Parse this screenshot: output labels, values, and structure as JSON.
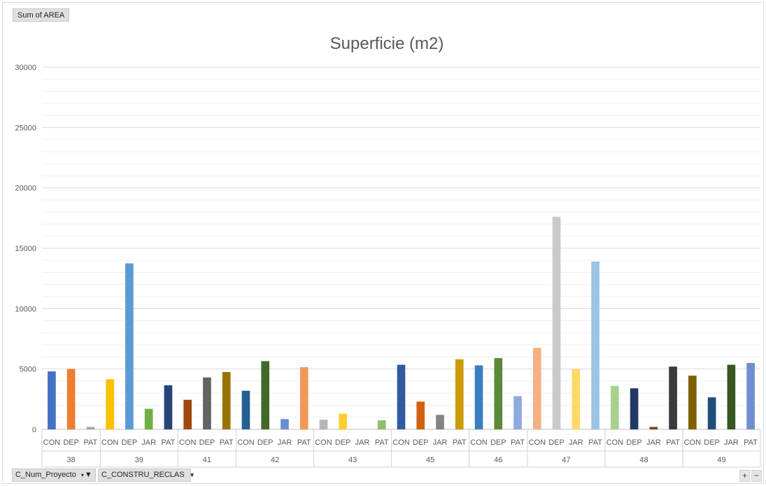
{
  "value_field": "Sum of AREA",
  "axis_fields": [
    {
      "label": "C_Num_Proyecto",
      "icon": "filter-icon"
    },
    {
      "label": "C_CONSTRU_RECLAS",
      "icon": "dropdown-arrow-icon"
    }
  ],
  "zoom": {
    "plus": "+",
    "minus": "−"
  },
  "chart_data": {
    "type": "bar",
    "title": "Superficie (m2)",
    "xlabel": "",
    "ylabel": "",
    "ylim": [
      0,
      30000
    ],
    "yticks": [
      0,
      5000,
      10000,
      15000,
      20000,
      25000,
      30000
    ],
    "grid": true,
    "legend": "none",
    "groups": [
      {
        "name": "38",
        "bars": [
          {
            "label": "CON",
            "value": 4800,
            "color": "#4472C4"
          },
          {
            "label": "DEP",
            "value": 5000,
            "color": "#ED7D31"
          },
          {
            "label": "PAT",
            "value": 200,
            "color": "#A5A5A5"
          }
        ]
      },
      {
        "name": "39",
        "bars": [
          {
            "label": "CON",
            "value": 4150,
            "color": "#FFC000"
          },
          {
            "label": "DEP",
            "value": 13750,
            "color": "#5B9BD5"
          },
          {
            "label": "JAR",
            "value": 1700,
            "color": "#70AD47"
          },
          {
            "label": "PAT",
            "value": 3650,
            "color": "#264478"
          }
        ]
      },
      {
        "name": "41",
        "bars": [
          {
            "label": "CON",
            "value": 2450,
            "color": "#9E480E"
          },
          {
            "label": "DEP",
            "value": 4300,
            "color": "#636363"
          },
          {
            "label": "PAT",
            "value": 4750,
            "color": "#997300"
          }
        ]
      },
      {
        "name": "42",
        "bars": [
          {
            "label": "CON",
            "value": 3200,
            "color": "#255E91"
          },
          {
            "label": "DEP",
            "value": 5650,
            "color": "#43682B"
          },
          {
            "label": "JAR",
            "value": 850,
            "color": "#698ED0"
          },
          {
            "label": "PAT",
            "value": 5150,
            "color": "#F1975A"
          }
        ]
      },
      {
        "name": "43",
        "bars": [
          {
            "label": "CON",
            "value": 800,
            "color": "#B7B7B7"
          },
          {
            "label": "DEP",
            "value": 1300,
            "color": "#FFCD33"
          },
          {
            "label": "JAR",
            "value": 0,
            "color": "#7CAFDD"
          },
          {
            "label": "PAT",
            "value": 750,
            "color": "#8CC168"
          }
        ]
      },
      {
        "name": "45",
        "bars": [
          {
            "label": "CON",
            "value": 5350,
            "color": "#335AA1"
          },
          {
            "label": "DEP",
            "value": 2300,
            "color": "#D26012"
          },
          {
            "label": "JAR",
            "value": 1200,
            "color": "#848484"
          },
          {
            "label": "PAT",
            "value": 5800,
            "color": "#CC9A00"
          }
        ]
      },
      {
        "name": "46",
        "bars": [
          {
            "label": "CON",
            "value": 5300,
            "color": "#3A7EC0"
          },
          {
            "label": "DEP",
            "value": 5900,
            "color": "#5A8A39"
          },
          {
            "label": "PAT",
            "value": 2750,
            "color": "#8FAADC"
          }
        ]
      },
      {
        "name": "47",
        "bars": [
          {
            "label": "CON",
            "value": 6750,
            "color": "#F4B183"
          },
          {
            "label": "DEP",
            "value": 17600,
            "color": "#C9C9C9"
          },
          {
            "label": "JAR",
            "value": 5000,
            "color": "#FFD966"
          },
          {
            "label": "PAT",
            "value": 13900,
            "color": "#9DC3E6"
          }
        ]
      },
      {
        "name": "48",
        "bars": [
          {
            "label": "CON",
            "value": 3600,
            "color": "#A9D18E"
          },
          {
            "label": "DEP",
            "value": 3400,
            "color": "#203864"
          },
          {
            "label": "JAR",
            "value": 200,
            "color": "#843C0C"
          },
          {
            "label": "PAT",
            "value": 5200,
            "color": "#3B3B3B"
          }
        ]
      },
      {
        "name": "49",
        "bars": [
          {
            "label": "CON",
            "value": 4450,
            "color": "#7F6000"
          },
          {
            "label": "DEP",
            "value": 2650,
            "color": "#1F4E79"
          },
          {
            "label": "JAR",
            "value": 5350,
            "color": "#375623"
          },
          {
            "label": "PAT",
            "value": 5500,
            "color": "#6F8FD0"
          }
        ]
      }
    ]
  }
}
